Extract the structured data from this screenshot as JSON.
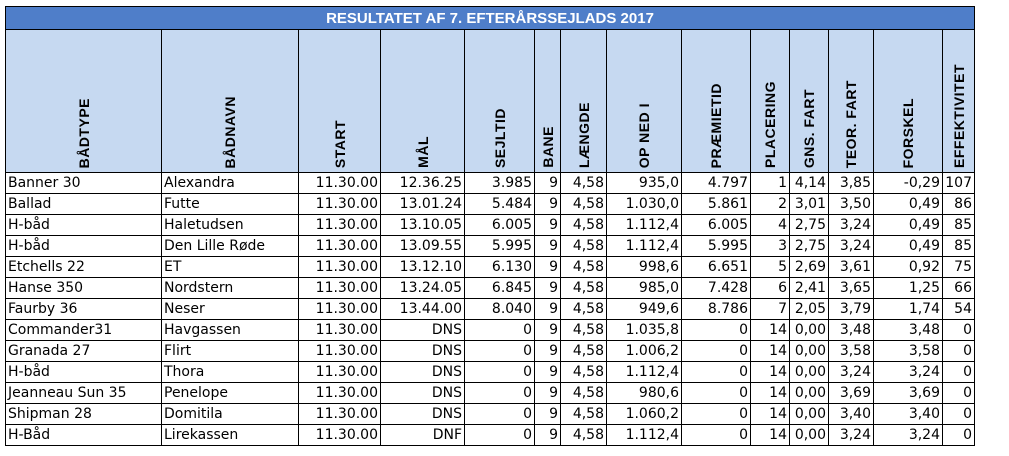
{
  "title": "RESULTATET AF 7. EFTERÅRSSEJLADS 2017",
  "columns": [
    "BÅDTYPE",
    "BÅDNAVN",
    "START",
    "MÅL",
    "SEJLTID",
    "BANE",
    "LÆNGDE",
    "OP NED I",
    "PRÆMIETID",
    "PLACERING",
    "GNS. FART",
    "TEOR. FART",
    "FORSKEL",
    "EFFEKTIVITET"
  ],
  "rows": [
    [
      "Banner 30",
      "Alexandra",
      "11.30.00",
      "12.36.25",
      "3.985",
      "9",
      "4,58",
      "935,0",
      "4.797",
      "1",
      "4,14",
      "3,85",
      "-0,29",
      "107"
    ],
    [
      "Ballad",
      "Futte",
      "11.30.00",
      "13.01.24",
      "5.484",
      "9",
      "4,58",
      "1.030,0",
      "5.861",
      "2",
      "3,01",
      "3,50",
      "0,49",
      "86"
    ],
    [
      "H-båd",
      "Haletudsen",
      "11.30.00",
      "13.10.05",
      "6.005",
      "9",
      "4,58",
      "1.112,4",
      "6.005",
      "4",
      "2,75",
      "3,24",
      "0,49",
      "85"
    ],
    [
      "H-båd",
      "Den Lille Røde",
      "11.30.00",
      "13.09.55",
      "5.995",
      "9",
      "4,58",
      "1.112,4",
      "5.995",
      "3",
      "2,75",
      "3,24",
      "0,49",
      "85"
    ],
    [
      "Etchells 22",
      "ET",
      "11.30.00",
      "13.12.10",
      "6.130",
      "9",
      "4,58",
      "998,6",
      "6.651",
      "5",
      "2,69",
      "3,61",
      "0,92",
      "75"
    ],
    [
      "Hanse 350",
      "Nordstern",
      "11.30.00",
      "13.24.05",
      "6.845",
      "9",
      "4,58",
      "985,0",
      "7.428",
      "6",
      "2,41",
      "3,65",
      "1,25",
      "66"
    ],
    [
      "Faurby 36",
      "Neser",
      "11.30.00",
      "13.44.00",
      "8.040",
      "9",
      "4,58",
      "949,6",
      "8.786",
      "7",
      "2,05",
      "3,79",
      "1,74",
      "54"
    ],
    [
      "Commander31",
      "Havgassen",
      "11.30.00",
      "DNS",
      "0",
      "9",
      "4,58",
      "1.035,8",
      "0",
      "14",
      "0,00",
      "3,48",
      "3,48",
      "0"
    ],
    [
      "Granada 27",
      "Flirt",
      "11.30.00",
      "DNS",
      "0",
      "9",
      "4,58",
      "1.006,2",
      "0",
      "14",
      "0,00",
      "3,58",
      "3,58",
      "0"
    ],
    [
      "H-båd",
      "Thora",
      "11.30.00",
      "DNS",
      "0",
      "9",
      "4,58",
      "1.112,4",
      "0",
      "14",
      "0,00",
      "3,24",
      "3,24",
      "0"
    ],
    [
      "Jeanneau Sun 35",
      "Penelope",
      "11.30.00",
      "DNS",
      "0",
      "9",
      "4,58",
      "980,6",
      "0",
      "14",
      "0,00",
      "3,69",
      "3,69",
      "0"
    ],
    [
      "Shipman 28",
      "Domitila",
      "11.30.00",
      "DNS",
      "0",
      "9",
      "4,58",
      "1.060,2",
      "0",
      "14",
      "0,00",
      "3,40",
      "3,40",
      "0"
    ],
    [
      "H-Båd",
      "Lirekassen",
      "11.30.00",
      "DNF",
      "0",
      "9",
      "4,58",
      "1.112,4",
      "0",
      "14",
      "0,00",
      "3,24",
      "3,24",
      "0"
    ]
  ],
  "colors": {
    "title_bg": "#4f7ec9",
    "title_text": "#ffffff",
    "header_bg": "#c6d9f1"
  }
}
